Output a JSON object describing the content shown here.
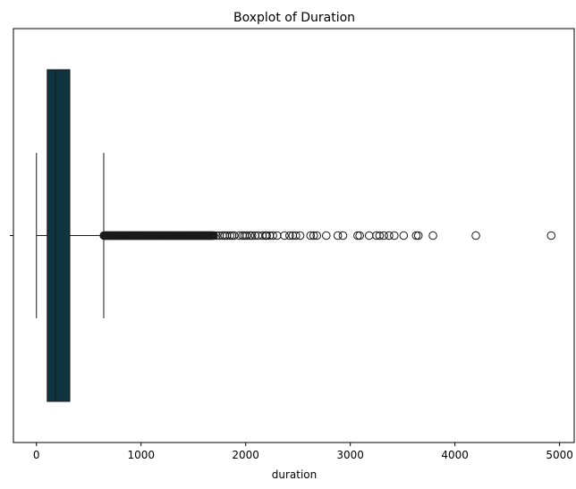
{
  "chart_data": {
    "type": "boxplot",
    "title": "Boxplot of Duration",
    "xlabel": "duration",
    "ylabel": "",
    "xlim": [
      -220,
      5140
    ],
    "xticks": [
      0,
      1000,
      2000,
      3000,
      4000,
      5000
    ],
    "xtick_labels": [
      "0",
      "1000",
      "2000",
      "3000",
      "4000",
      "5000"
    ],
    "grid": false,
    "colors": {
      "box_fill": "#0f3440",
      "line": "#1a1a1a"
    },
    "box": {
      "whisker_low": 0,
      "q1": 103,
      "median": 180,
      "q3": 319,
      "whisker_high": 643
    },
    "outliers_dense_range": [
      645,
      1700
    ],
    "outliers": [
      1720,
      1750,
      1780,
      1800,
      1820,
      1850,
      1870,
      1890,
      1940,
      1970,
      1990,
      2010,
      2040,
      2060,
      2090,
      2120,
      2160,
      2190,
      2200,
      2230,
      2260,
      2300,
      2370,
      2420,
      2450,
      2480,
      2520,
      2620,
      2650,
      2680,
      2770,
      2880,
      2930,
      3070,
      3090,
      3180,
      3250,
      3280,
      3320,
      3370,
      3420,
      3510,
      3630,
      3650,
      3790,
      4200,
      4920
    ]
  }
}
